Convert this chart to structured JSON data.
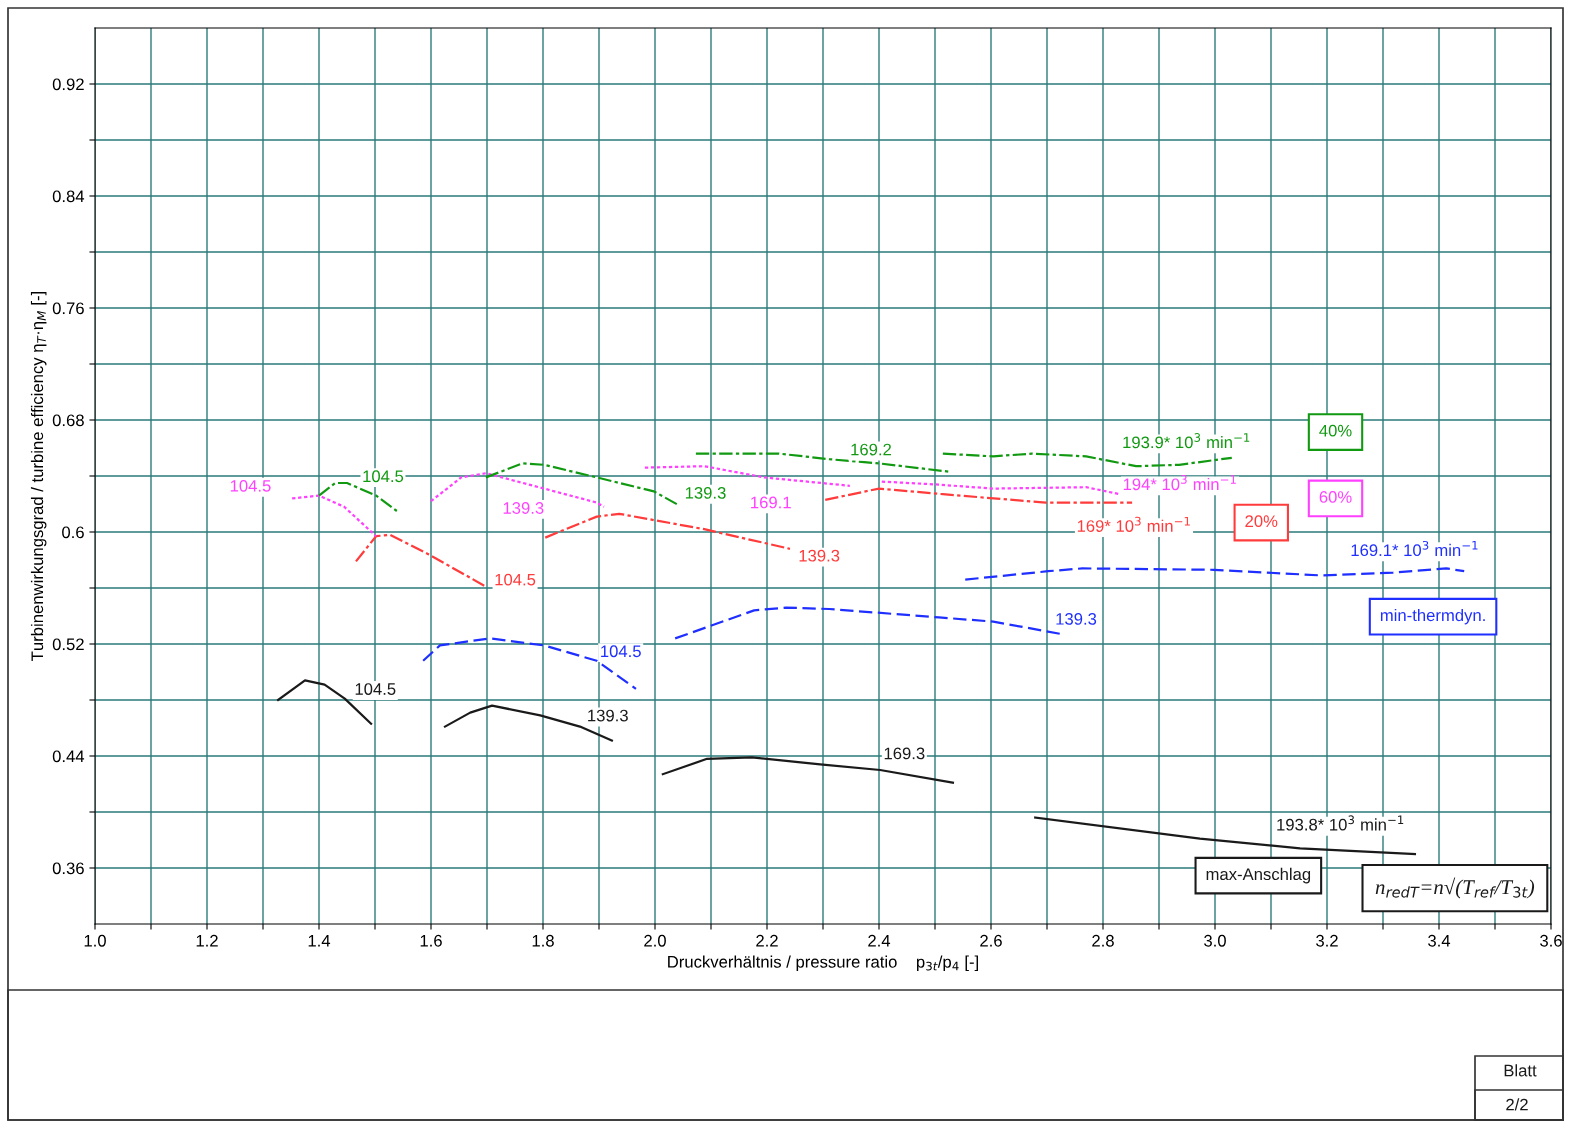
{
  "chart_data": {
    "type": "line",
    "xlabel": "Druckverhältnis / pressure ratio    p$_{3t}$/p$_{4}$ [-]",
    "ylabel": "Turbinenwirkungsgrad / turbine efficiency η$_{T}$·η$_{M}$ [-]",
    "xlim": [
      1.0,
      3.6
    ],
    "ylim": [
      0.32,
      0.96
    ],
    "xticks": [
      {
        "value": 1.0,
        "label": "1.0"
      },
      {
        "value": 1.1,
        "label": null
      },
      {
        "value": 1.2,
        "label": "1.2"
      },
      {
        "value": 1.3,
        "label": null
      },
      {
        "value": 1.4,
        "label": "1.4"
      },
      {
        "value": 1.5,
        "label": null
      },
      {
        "value": 1.6,
        "label": "1.6"
      },
      {
        "value": 1.7,
        "label": null
      },
      {
        "value": 1.8,
        "label": "1.8"
      },
      {
        "value": 1.9,
        "label": null
      },
      {
        "value": 2.0,
        "label": "2.0"
      },
      {
        "value": 2.1,
        "label": null
      },
      {
        "value": 2.2,
        "label": "2.2"
      },
      {
        "value": 2.3,
        "label": null
      },
      {
        "value": 2.4,
        "label": "2.4"
      },
      {
        "value": 2.5,
        "label": null
      },
      {
        "value": 2.6,
        "label": "2.6"
      },
      {
        "value": 2.7,
        "label": null
      },
      {
        "value": 2.8,
        "label": "2.8"
      },
      {
        "value": 2.9,
        "label": null
      },
      {
        "value": 3.0,
        "label": "3.0"
      },
      {
        "value": 3.1,
        "label": null
      },
      {
        "value": 3.2,
        "label": "3.2"
      },
      {
        "value": 3.3,
        "label": null
      },
      {
        "value": 3.4,
        "label": "3.4"
      },
      {
        "value": 3.5,
        "label": null
      },
      {
        "value": 3.6,
        "label": "3.6"
      }
    ],
    "yticks": [
      0.36,
      {
        "value": 0.4,
        "label": null
      },
      0.44,
      {
        "value": 0.48,
        "label": null
      },
      0.52,
      {
        "value": 0.56,
        "label": null
      },
      0.6,
      {
        "value": 0.64,
        "label": null
      },
      0.68,
      {
        "value": 0.72,
        "label": null
      },
      0.76,
      {
        "value": 0.8,
        "label": null
      },
      0.84,
      {
        "value": 0.88,
        "label": null
      },
      0.92
    ],
    "grid": true,
    "legend": false,
    "marker": "none",
    "series": [
      {
        "name": "104.5",
        "color": "#1a1a1a",
        "line_style": "solid",
        "x": [
          1.327,
          1.375,
          1.41,
          1.446,
          1.493
        ],
        "values": [
          0.48,
          0.494,
          0.491,
          0.481,
          0.463
        ]
      },
      {
        "name": "139.3",
        "color": "#1a1a1a",
        "line_style": "solid",
        "x": [
          1.625,
          1.67,
          1.709,
          1.795,
          1.866,
          1.923
        ],
        "values": [
          0.461,
          0.471,
          0.476,
          0.469,
          0.461,
          0.451
        ]
      },
      {
        "name": "169.3",
        "color": "#1a1a1a",
        "line_style": "solid",
        "x": [
          2.014,
          2.093,
          2.173,
          2.295,
          2.402,
          2.532
        ],
        "values": [
          0.427,
          0.438,
          0.439,
          0.434,
          0.43,
          0.421
        ]
      },
      {
        "name": "193.8* 10$^{3}$ min$^{−1}$",
        "color": "#1a1a1a",
        "line_style": "solid",
        "x": [
          2.679,
          2.973,
          3.152,
          3.357
        ],
        "values": [
          0.396,
          0.381,
          0.374,
          0.37
        ]
      },
      {
        "name": "104.5",
        "color": "#1f2fff",
        "line_style": "dashed",
        "x": [
          1.586,
          1.616,
          1.705,
          1.802,
          1.896,
          1.966
        ],
        "values": [
          0.508,
          0.519,
          0.524,
          0.519,
          0.508,
          0.488
        ]
      },
      {
        "name": "139.3",
        "color": "#1f2fff",
        "line_style": "dashed",
        "x": [
          2.036,
          2.177,
          2.234,
          2.311,
          2.507,
          2.604,
          2.727
        ],
        "values": [
          0.524,
          0.544,
          0.546,
          0.545,
          0.539,
          0.536,
          0.527
        ]
      },
      {
        "name": "169.1* 10$^{3}$ min$^{−1}$",
        "color": "#1f2fff",
        "line_style": "dashed",
        "x": [
          2.554,
          2.702,
          2.763,
          2.998,
          3.189,
          3.318,
          3.413,
          3.445
        ],
        "values": [
          0.566,
          0.572,
          0.574,
          0.573,
          0.569,
          0.571,
          0.574,
          0.572
        ]
      },
      {
        "name": "104.5",
        "color": "#ff3b3b",
        "line_style": "dashdot",
        "x": [
          1.466,
          1.502,
          1.527,
          1.596,
          1.698
        ],
        "values": [
          0.579,
          0.597,
          0.598,
          0.584,
          0.561
        ]
      },
      {
        "name": "139.3",
        "color": "#ff3b3b",
        "line_style": "dashdot",
        "x": [
          1.804,
          1.896,
          1.936,
          2.088,
          2.241
        ],
        "values": [
          0.596,
          0.611,
          0.613,
          0.602,
          0.588
        ]
      },
      {
        "name": "169* 10$^{3}$ min$^{−1}$",
        "color": "#ff3b3b",
        "line_style": "dashdot",
        "x": [
          2.304,
          2.4,
          2.514,
          2.698,
          2.852
        ],
        "values": [
          0.623,
          0.631,
          0.627,
          0.621,
          0.621
        ]
      },
      {
        "name": "104.5",
        "color": "#ff40ff",
        "line_style": "dotted",
        "x": [
          1.352,
          1.4,
          1.445,
          1.502
        ],
        "values": [
          0.624,
          0.626,
          0.618,
          0.597
        ]
      },
      {
        "name": "139.3",
        "color": "#ff40ff",
        "line_style": "dotted",
        "x": [
          1.6,
          1.654,
          1.698,
          1.802,
          1.896,
          1.909
        ],
        "values": [
          0.622,
          0.639,
          0.642,
          0.631,
          0.621,
          0.618
        ]
      },
      {
        "name": "169.1",
        "color": "#ff40ff",
        "line_style": "dotted",
        "x": [
          1.982,
          2.088,
          2.195,
          2.348
        ],
        "values": [
          0.646,
          0.647,
          0.639,
          0.633
        ]
      },
      {
        "name": "194* 10$^{3}$ min$^{−1}$",
        "color": "#ff40ff",
        "line_style": "dotted",
        "x": [
          2.405,
          2.5,
          2.604,
          2.77,
          2.83
        ],
        "values": [
          0.636,
          0.634,
          0.631,
          0.632,
          0.627
        ]
      },
      {
        "name": "104.5",
        "color": "#119911",
        "line_style": "dashdot",
        "x": [
          1.4,
          1.429,
          1.45,
          1.502,
          1.539
        ],
        "values": [
          0.626,
          0.635,
          0.635,
          0.626,
          0.615
        ]
      },
      {
        "name": "139.3",
        "color": "#119911",
        "line_style": "dashdot",
        "x": [
          1.698,
          1.763,
          1.802,
          1.896,
          1.998,
          2.043
        ],
        "values": [
          0.639,
          0.649,
          0.648,
          0.639,
          0.629,
          0.619
        ]
      },
      {
        "name": "169.2",
        "color": "#119911",
        "line_style": "dashdot",
        "x": [
          2.073,
          2.221,
          2.311,
          2.4,
          2.527
        ],
        "values": [
          0.656,
          0.656,
          0.652,
          0.649,
          0.643
        ]
      },
      {
        "name": "193.9* 10$^{3}$ min$^{−1}$",
        "color": "#119911",
        "line_style": "dashdot",
        "x": [
          2.514,
          2.604,
          2.673,
          2.77,
          2.859,
          2.936,
          3.03
        ],
        "values": [
          0.656,
          0.654,
          0.656,
          0.654,
          0.647,
          0.648,
          0.653
        ]
      }
    ],
    "annotations": [
      "40%",
      "60%",
      "20%",
      "min-thermdyn.",
      "max-Anschlag",
      "n$_{redT}$=n√(T$_{ref}$/T$_{3t}$)",
      "Blatt",
      "2/2"
    ]
  }
}
